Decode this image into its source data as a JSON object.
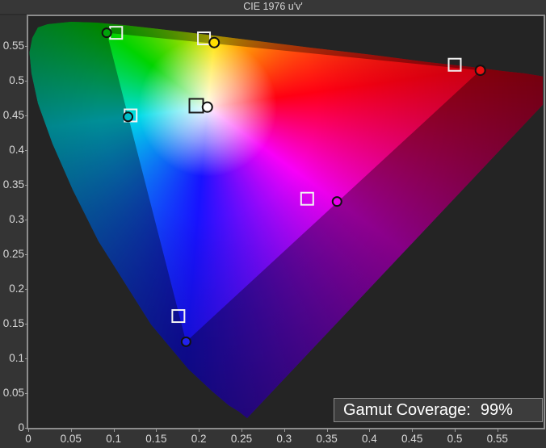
{
  "chart_data": {
    "type": "scatter",
    "title": "CIE 1976 u'v'",
    "subtitle": "",
    "x_axis": {
      "ticks": [
        "0",
        "0.05",
        "0.1",
        "0.15",
        "0.2",
        "0.25",
        "0.3",
        "0.35",
        "0.4",
        "0.45",
        "0.5",
        "0.55"
      ],
      "range": [
        0,
        0.605
      ],
      "grid": false
    },
    "y_axis": {
      "ticks": [
        "0",
        "0.05",
        "0.1",
        "0.15",
        "0.2",
        "0.25",
        "0.3",
        "0.35",
        "0.4",
        "0.45",
        "0.5",
        "0.55"
      ],
      "range": [
        0,
        0.593
      ],
      "grid": false
    },
    "legend": "none",
    "background": "spectral-locus-horseshoe",
    "series": [
      {
        "name": "color-targets",
        "marker": "square",
        "points": [
          {
            "name": "green",
            "u": 0.103,
            "v": 0.569,
            "stroke": "#f2f2f2",
            "size": 15
          },
          {
            "name": "yellow",
            "u": 0.206,
            "v": 0.561,
            "stroke": "#f2f2f2",
            "size": 15
          },
          {
            "name": "red",
            "u": 0.5,
            "v": 0.523,
            "stroke": "#f2f2f2",
            "size": 15
          },
          {
            "name": "cyan",
            "u": 0.12,
            "v": 0.45,
            "stroke": "#f2f2f2",
            "size": 15
          },
          {
            "name": "magenta",
            "u": 0.327,
            "v": 0.33,
            "stroke": "#f2f2f2",
            "size": 15
          },
          {
            "name": "blue",
            "u": 0.176,
            "v": 0.161,
            "stroke": "#f2f2f2",
            "size": 15
          },
          {
            "name": "white-point",
            "u": 0.197,
            "v": 0.464,
            "stroke": "#1a1a1a",
            "size": 17
          }
        ]
      },
      {
        "name": "measured-points",
        "marker": "circle",
        "points": [
          {
            "name": "green",
            "u": 0.092,
            "v": 0.569,
            "fill": "#00a30a",
            "r": 5.5
          },
          {
            "name": "yellow",
            "u": 0.218,
            "v": 0.555,
            "fill": "#ffdf00",
            "r": 6
          },
          {
            "name": "red",
            "u": 0.53,
            "v": 0.515,
            "fill": "#ea0f10",
            "r": 6
          },
          {
            "name": "cyan",
            "u": 0.117,
            "v": 0.448,
            "fill": "#00bfc8",
            "r": 5.5
          },
          {
            "name": "magenta",
            "u": 0.362,
            "v": 0.326,
            "fill": "#ec00ec",
            "r": 5.5
          },
          {
            "name": "blue",
            "u": 0.185,
            "v": 0.124,
            "fill": "#2222ee",
            "r": 5.5
          },
          {
            "name": "white-point",
            "u": 0.21,
            "v": 0.462,
            "fill": "#ffffff",
            "r": 6
          }
        ]
      }
    ],
    "annotation": {
      "label": "Gamut Coverage:",
      "value": "99%"
    }
  },
  "colors": {
    "background": "#343434",
    "plot_background": "#242424",
    "frame_border": "#8d8d8d",
    "axis_text": "#d9d9d9",
    "title_text": "#d6d6d6",
    "badge_background": "#3e3e3e",
    "badge_text": "#ffffff"
  }
}
